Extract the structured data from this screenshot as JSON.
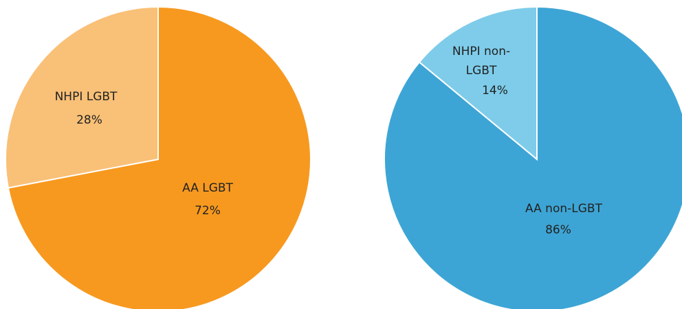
{
  "chart_data": [
    {
      "type": "pie",
      "categories": [
        "AA LGBT",
        "NHPI LGBT"
      ],
      "values": [
        72,
        28
      ],
      "value_labels": [
        "72%",
        "28%"
      ],
      "colors": [
        "#f7991f",
        "#f9c077"
      ]
    },
    {
      "type": "pie",
      "categories": [
        "AA non-LGBT",
        "NHPI non-LGBT"
      ],
      "values": [
        86,
        14
      ],
      "value_labels": [
        "86%",
        "14%"
      ],
      "colors": [
        "#3da5d5",
        "#7eccea"
      ]
    }
  ]
}
